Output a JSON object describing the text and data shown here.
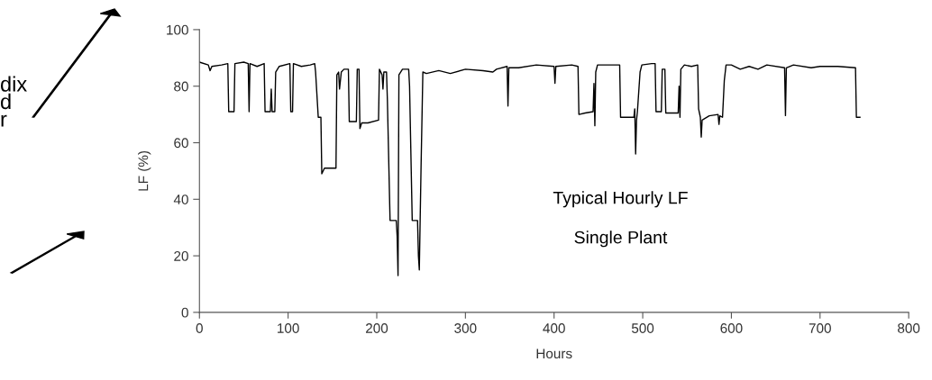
{
  "chart_data": {
    "type": "line",
    "xlabel": "Hours",
    "ylabel": "LF (%)",
    "xlim": [
      0,
      800
    ],
    "xticks": [
      0,
      100,
      200,
      300,
      400,
      500,
      600,
      700,
      800
    ],
    "ylim": [
      0,
      100
    ],
    "yticks": [
      0,
      20,
      40,
      60,
      80,
      100
    ],
    "grid": false,
    "legend": false,
    "marker": "none",
    "line_style": "solid",
    "annotations": [
      "dix\nd\nr",
      "Typical Hourly LF",
      "Single Plant"
    ],
    "series": [
      {
        "color": "#000000",
        "x": [
          0,
          10,
          12,
          14,
          25,
          32,
          33,
          39,
          40,
          50,
          55,
          56,
          57,
          65,
          73,
          74,
          80,
          81,
          82,
          85,
          86,
          90,
          102,
          103,
          105,
          106,
          115,
          125,
          130,
          131,
          134,
          137,
          138,
          141,
          154,
          155,
          157,
          158,
          160,
          163,
          168,
          169,
          177,
          178,
          180,
          181,
          183,
          190,
          202,
          203,
          206,
          207,
          208,
          211,
          212,
          215,
          222,
          223,
          224,
          225,
          229,
          236,
          237,
          240,
          246,
          247,
          248,
          250,
          252,
          256,
          270,
          283,
          300,
          320,
          331,
          335,
          347,
          348,
          349,
          360,
          380,
          400,
          401,
          402,
          420,
          427,
          428,
          435,
          444,
          445,
          446,
          447,
          449,
          474,
          475,
          490,
          491,
          492,
          493,
          494,
          497,
          499,
          510,
          514,
          515,
          521,
          522,
          525,
          526,
          540,
          541,
          542,
          543,
          547,
          555,
          562,
          563,
          565,
          566,
          567,
          575,
          585,
          586,
          587,
          590,
          592,
          594,
          600,
          610,
          620,
          630,
          640,
          660,
          661,
          662,
          670,
          690,
          700,
          720,
          740,
          741,
          745
        ],
        "values": [
          88.5,
          87.5,
          85.5,
          87,
          87.5,
          88,
          71,
          71,
          88,
          88.5,
          88,
          71,
          88,
          87,
          88,
          71,
          71,
          79,
          71,
          71,
          85,
          87,
          88,
          71,
          71,
          88,
          87,
          87.5,
          88,
          85,
          69,
          69,
          49,
          51,
          51,
          84,
          85,
          79,
          85,
          86,
          86,
          67.5,
          67.5,
          86,
          86,
          65,
          67,
          67,
          68,
          86,
          84,
          79,
          85,
          85,
          75,
          32.5,
          32.5,
          27,
          13,
          84,
          86,
          86,
          80,
          32.5,
          32.5,
          20,
          15,
          52,
          85,
          84.5,
          85.5,
          84.5,
          86,
          85.5,
          85,
          86,
          87,
          73,
          86.5,
          86.5,
          87.5,
          87,
          81,
          87,
          87.5,
          87,
          70,
          70.5,
          71,
          81,
          66,
          85,
          87.5,
          87.5,
          69,
          69,
          72,
          56,
          68,
          71,
          85,
          87.5,
          88,
          88,
          71,
          71,
          86,
          86,
          70.5,
          70.5,
          80,
          69,
          86,
          87.5,
          87,
          87.5,
          72,
          69,
          62,
          68,
          69.5,
          70,
          66.5,
          69.5,
          69,
          82,
          87.5,
          87.5,
          86,
          87,
          86,
          87.5,
          86.5,
          69.6,
          86.5,
          87.5,
          86.5,
          87,
          87,
          86.5,
          69,
          69
        ]
      }
    ]
  }
}
